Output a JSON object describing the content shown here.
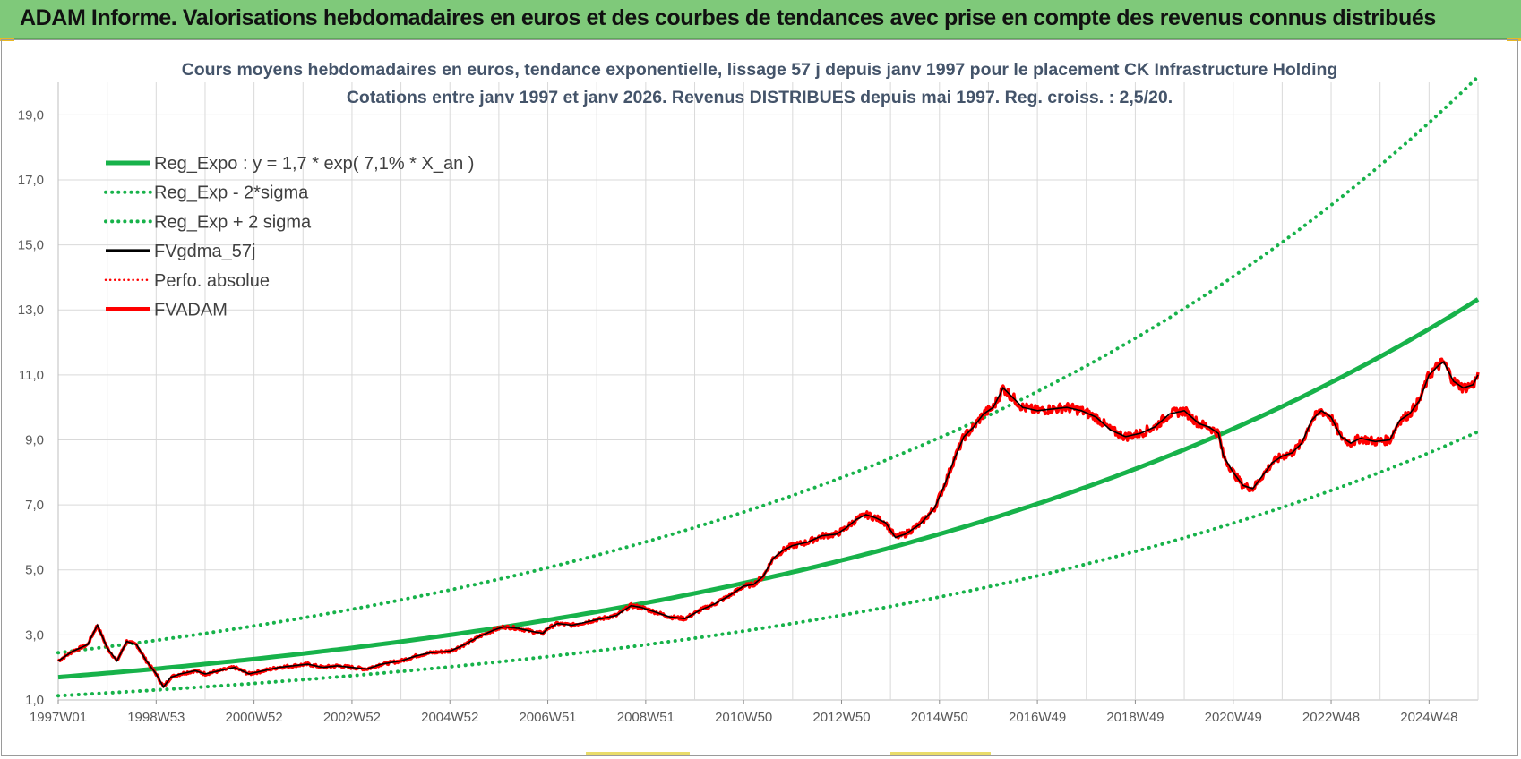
{
  "banner": {
    "title": "ADAM Informe. Valorisations hebdomadaires en euros et des courbes de tendances avec prise en compte des revenus connus distribués"
  },
  "colors": {
    "banner_bg": "#7fc97a",
    "reg_green": "#17b24a",
    "fv_black": "#000000",
    "adam_red": "#ff0000",
    "grid": "#d9d9d9"
  },
  "chart_data": {
    "type": "line",
    "title_line1": "Cours moyens hebdomadaires en euros, tendance exponentielle, lissage 57 j depuis janv 1997  pour le placement CK Infrastructure Holding",
    "title_line2": "Cotations entre janv 1997 et janv 2026. Revenus DISTRIBUES depuis mai 1997.  Reg. croiss. : 2,5/20.",
    "x_range": [
      1997.0,
      2026.0
    ],
    "ylim": [
      1.0,
      20.0
    ],
    "y_ticks": [
      "1,0",
      "3,0",
      "5,0",
      "7,0",
      "9,0",
      "11,0",
      "13,0",
      "15,0",
      "17,0",
      "19,0"
    ],
    "x_ticks": [
      {
        "label": "1997W01",
        "x": 1997.0
      },
      {
        "label": "1998W53",
        "x": 1999.0
      },
      {
        "label": "2000W52",
        "x": 2001.0
      },
      {
        "label": "2002W52",
        "x": 2003.0
      },
      {
        "label": "2004W52",
        "x": 2005.0
      },
      {
        "label": "2006W51",
        "x": 2007.0
      },
      {
        "label": "2008W51",
        "x": 2009.0
      },
      {
        "label": "2010W50",
        "x": 2011.0
      },
      {
        "label": "2012W50",
        "x": 2013.0
      },
      {
        "label": "2014W50",
        "x": 2015.0
      },
      {
        "label": "2016W49",
        "x": 2017.0
      },
      {
        "label": "2018W49",
        "x": 2019.0
      },
      {
        "label": "2020W49",
        "x": 2021.0
      },
      {
        "label": "2022W48",
        "x": 2023.0
      },
      {
        "label": "2024W48",
        "x": 2025.0
      }
    ],
    "legend": [
      {
        "label": "Reg_Expo : y = 1,7 * exp( 7,1% *  X_an )",
        "style": "solid-thick",
        "color": "#17b24a"
      },
      {
        "label": "Reg_Exp - 2*sigma",
        "style": "dotted",
        "color": "#17b24a"
      },
      {
        "label": "Reg_Exp + 2 sigma",
        "style": "dotted",
        "color": "#17b24a"
      },
      {
        "label": "FVgdma_57j",
        "style": "solid",
        "color": "#000000"
      },
      {
        "label": "Perfo. absolue",
        "style": "dotted-thin",
        "color": "#ff0000"
      },
      {
        "label": "FVADAM",
        "style": "solid-thick",
        "color": "#ff0000"
      }
    ],
    "series": [
      {
        "name": "Reg_Expo",
        "a": 1.7,
        "b": 0.071,
        "x0": 1997.0
      },
      {
        "name": "Reg_Exp - 2*sigma",
        "a": 1.13,
        "b": 0.0725,
        "x0": 1997.0
      },
      {
        "name": "Reg_Exp + 2 sigma",
        "a": 2.45,
        "b": 0.0727,
        "x0": 1997.0
      },
      {
        "name": "FVADAM",
        "points": [
          [
            1997.0,
            2.2
          ],
          [
            1997.3,
            2.5
          ],
          [
            1997.6,
            2.7
          ],
          [
            1997.8,
            3.3
          ],
          [
            1998.0,
            2.6
          ],
          [
            1998.2,
            2.2
          ],
          [
            1998.4,
            2.8
          ],
          [
            1998.6,
            2.7
          ],
          [
            1998.8,
            2.2
          ],
          [
            1999.0,
            1.8
          ],
          [
            1999.15,
            1.4
          ],
          [
            1999.3,
            1.7
          ],
          [
            1999.5,
            1.8
          ],
          [
            1999.8,
            1.9
          ],
          [
            2000.0,
            1.8
          ],
          [
            2000.3,
            1.9
          ],
          [
            2000.6,
            2.0
          ],
          [
            2000.9,
            1.8
          ],
          [
            2001.2,
            1.9
          ],
          [
            2001.5,
            2.0
          ],
          [
            2001.8,
            2.05
          ],
          [
            2002.1,
            2.1
          ],
          [
            2002.4,
            2.0
          ],
          [
            2002.7,
            2.05
          ],
          [
            2003.0,
            2.0
          ],
          [
            2003.3,
            1.95
          ],
          [
            2003.6,
            2.1
          ],
          [
            2004.0,
            2.2
          ],
          [
            2004.3,
            2.35
          ],
          [
            2004.6,
            2.45
          ],
          [
            2005.0,
            2.5
          ],
          [
            2005.3,
            2.7
          ],
          [
            2005.6,
            2.95
          ],
          [
            2005.9,
            3.15
          ],
          [
            2006.1,
            3.25
          ],
          [
            2006.4,
            3.2
          ],
          [
            2006.7,
            3.1
          ],
          [
            2006.9,
            3.05
          ],
          [
            2007.0,
            3.2
          ],
          [
            2007.2,
            3.35
          ],
          [
            2007.5,
            3.3
          ],
          [
            2007.8,
            3.4
          ],
          [
            2008.1,
            3.5
          ],
          [
            2008.4,
            3.6
          ],
          [
            2008.7,
            3.9
          ],
          [
            2008.9,
            3.85
          ],
          [
            2009.2,
            3.7
          ],
          [
            2009.5,
            3.55
          ],
          [
            2009.8,
            3.5
          ],
          [
            2010.1,
            3.75
          ],
          [
            2010.4,
            3.95
          ],
          [
            2010.7,
            4.2
          ],
          [
            2011.0,
            4.5
          ],
          [
            2011.2,
            4.55
          ],
          [
            2011.4,
            4.8
          ],
          [
            2011.6,
            5.35
          ],
          [
            2011.8,
            5.6
          ],
          [
            2012.0,
            5.75
          ],
          [
            2012.3,
            5.85
          ],
          [
            2012.6,
            6.05
          ],
          [
            2012.9,
            6.1
          ],
          [
            2013.1,
            6.3
          ],
          [
            2013.3,
            6.55
          ],
          [
            2013.5,
            6.7
          ],
          [
            2013.7,
            6.6
          ],
          [
            2013.9,
            6.45
          ],
          [
            2014.1,
            6.0
          ],
          [
            2014.3,
            6.1
          ],
          [
            2014.6,
            6.4
          ],
          [
            2014.9,
            6.9
          ],
          [
            2015.1,
            7.6
          ],
          [
            2015.3,
            8.4
          ],
          [
            2015.5,
            9.1
          ],
          [
            2015.7,
            9.4
          ],
          [
            2015.9,
            9.8
          ],
          [
            2016.1,
            10.0
          ],
          [
            2016.3,
            10.6
          ],
          [
            2016.5,
            10.3
          ],
          [
            2016.7,
            10.0
          ],
          [
            2017.0,
            9.9
          ],
          [
            2017.3,
            9.95
          ],
          [
            2017.6,
            10.0
          ],
          [
            2017.9,
            9.9
          ],
          [
            2018.2,
            9.7
          ],
          [
            2018.5,
            9.3
          ],
          [
            2018.8,
            9.1
          ],
          [
            2019.1,
            9.2
          ],
          [
            2019.4,
            9.4
          ],
          [
            2019.7,
            9.8
          ],
          [
            2020.0,
            9.9
          ],
          [
            2020.3,
            9.5
          ],
          [
            2020.5,
            9.4
          ],
          [
            2020.7,
            9.2
          ],
          [
            2020.8,
            8.5
          ],
          [
            2021.0,
            8.0
          ],
          [
            2021.2,
            7.6
          ],
          [
            2021.4,
            7.5
          ],
          [
            2021.6,
            7.9
          ],
          [
            2021.8,
            8.3
          ],
          [
            2022.0,
            8.5
          ],
          [
            2022.2,
            8.6
          ],
          [
            2022.4,
            8.9
          ],
          [
            2022.6,
            9.6
          ],
          [
            2022.8,
            9.9
          ],
          [
            2023.0,
            9.7
          ],
          [
            2023.2,
            9.1
          ],
          [
            2023.4,
            8.9
          ],
          [
            2023.6,
            9.05
          ],
          [
            2023.9,
            8.95
          ],
          [
            2024.2,
            9.0
          ],
          [
            2024.4,
            9.6
          ],
          [
            2024.6,
            9.8
          ],
          [
            2024.8,
            10.2
          ],
          [
            2025.0,
            11.0
          ],
          [
            2025.2,
            11.3
          ],
          [
            2025.3,
            11.4
          ],
          [
            2025.5,
            10.8
          ],
          [
            2025.7,
            10.6
          ],
          [
            2025.9,
            10.7
          ],
          [
            2026.0,
            11.0
          ]
        ]
      }
    ]
  }
}
